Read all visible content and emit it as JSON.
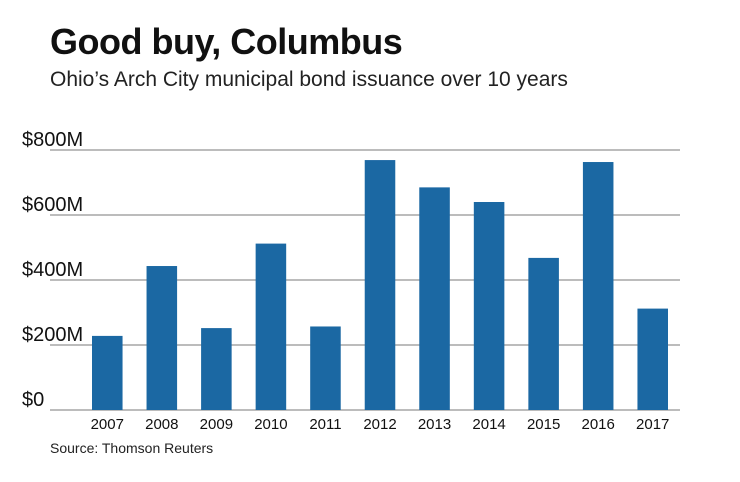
{
  "chart_data": {
    "type": "bar",
    "title": "Good buy, Columbus",
    "subtitle": "Ohio’s Arch City municipal bond issuance over 10 years",
    "source": "Source: Thomson Reuters",
    "categories": [
      "2007",
      "2008",
      "2009",
      "2010",
      "2011",
      "2012",
      "2013",
      "2014",
      "2015",
      "2016",
      "2017"
    ],
    "values": [
      228,
      443,
      252,
      512,
      257,
      769,
      685,
      640,
      468,
      763,
      312
    ],
    "ylim": [
      0,
      800
    ],
    "yticks": [
      0,
      200,
      400,
      600,
      800
    ],
    "ytick_labels": [
      "$0",
      "$200M",
      "$400M",
      "$600M",
      "$800M"
    ],
    "unit": "$M",
    "grid": true,
    "bar_color": "#1b68a3",
    "grid_color": "#7a7a7a"
  }
}
